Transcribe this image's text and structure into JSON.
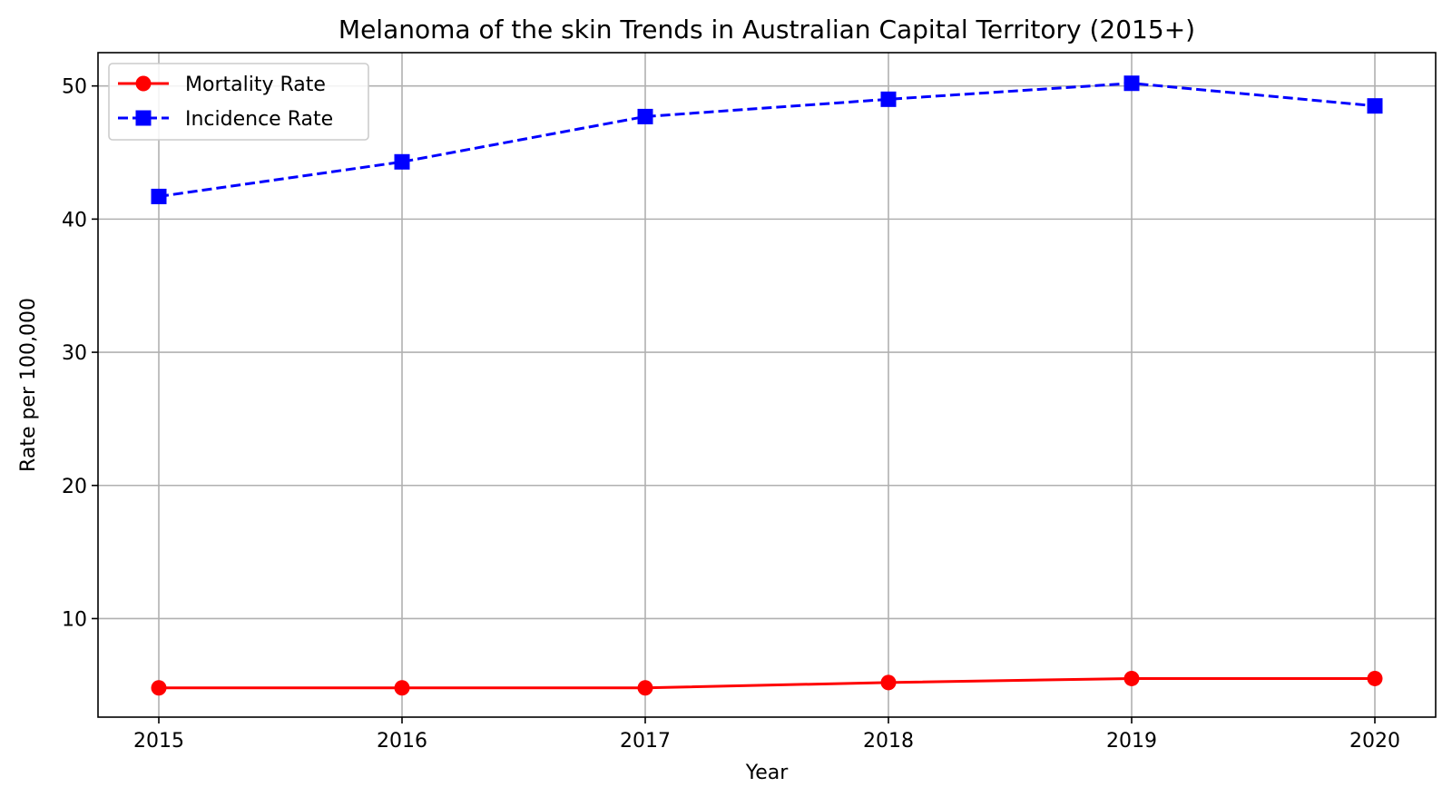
{
  "chart_data": {
    "type": "line",
    "title": "Melanoma of the skin Trends in Australian Capital Territory (2015+)",
    "xlabel": "Year",
    "ylabel": "Rate per 100,000",
    "x": [
      2015,
      2016,
      2017,
      2018,
      2019,
      2020
    ],
    "x_tick_labels": [
      "2015",
      "2016",
      "2017",
      "2018",
      "2019",
      "2020"
    ],
    "xlim": [
      2014.75,
      2020.25
    ],
    "ylim": [
      2.6,
      52.5
    ],
    "y_ticks": [
      10,
      20,
      30,
      40,
      50
    ],
    "y_tick_labels": [
      "10",
      "20",
      "30",
      "40",
      "50"
    ],
    "grid": true,
    "legend_position": "top-left",
    "series": [
      {
        "name": "Mortality Rate",
        "values": [
          4.8,
          4.8,
          4.8,
          5.2,
          5.5,
          5.5
        ],
        "color": "#ff0000",
        "line_style": "solid",
        "marker": "circle"
      },
      {
        "name": "Incidence Rate",
        "values": [
          41.7,
          44.3,
          47.7,
          49.0,
          50.2,
          48.5
        ],
        "color": "#0000ff",
        "line_style": "dashed",
        "marker": "square"
      }
    ]
  }
}
